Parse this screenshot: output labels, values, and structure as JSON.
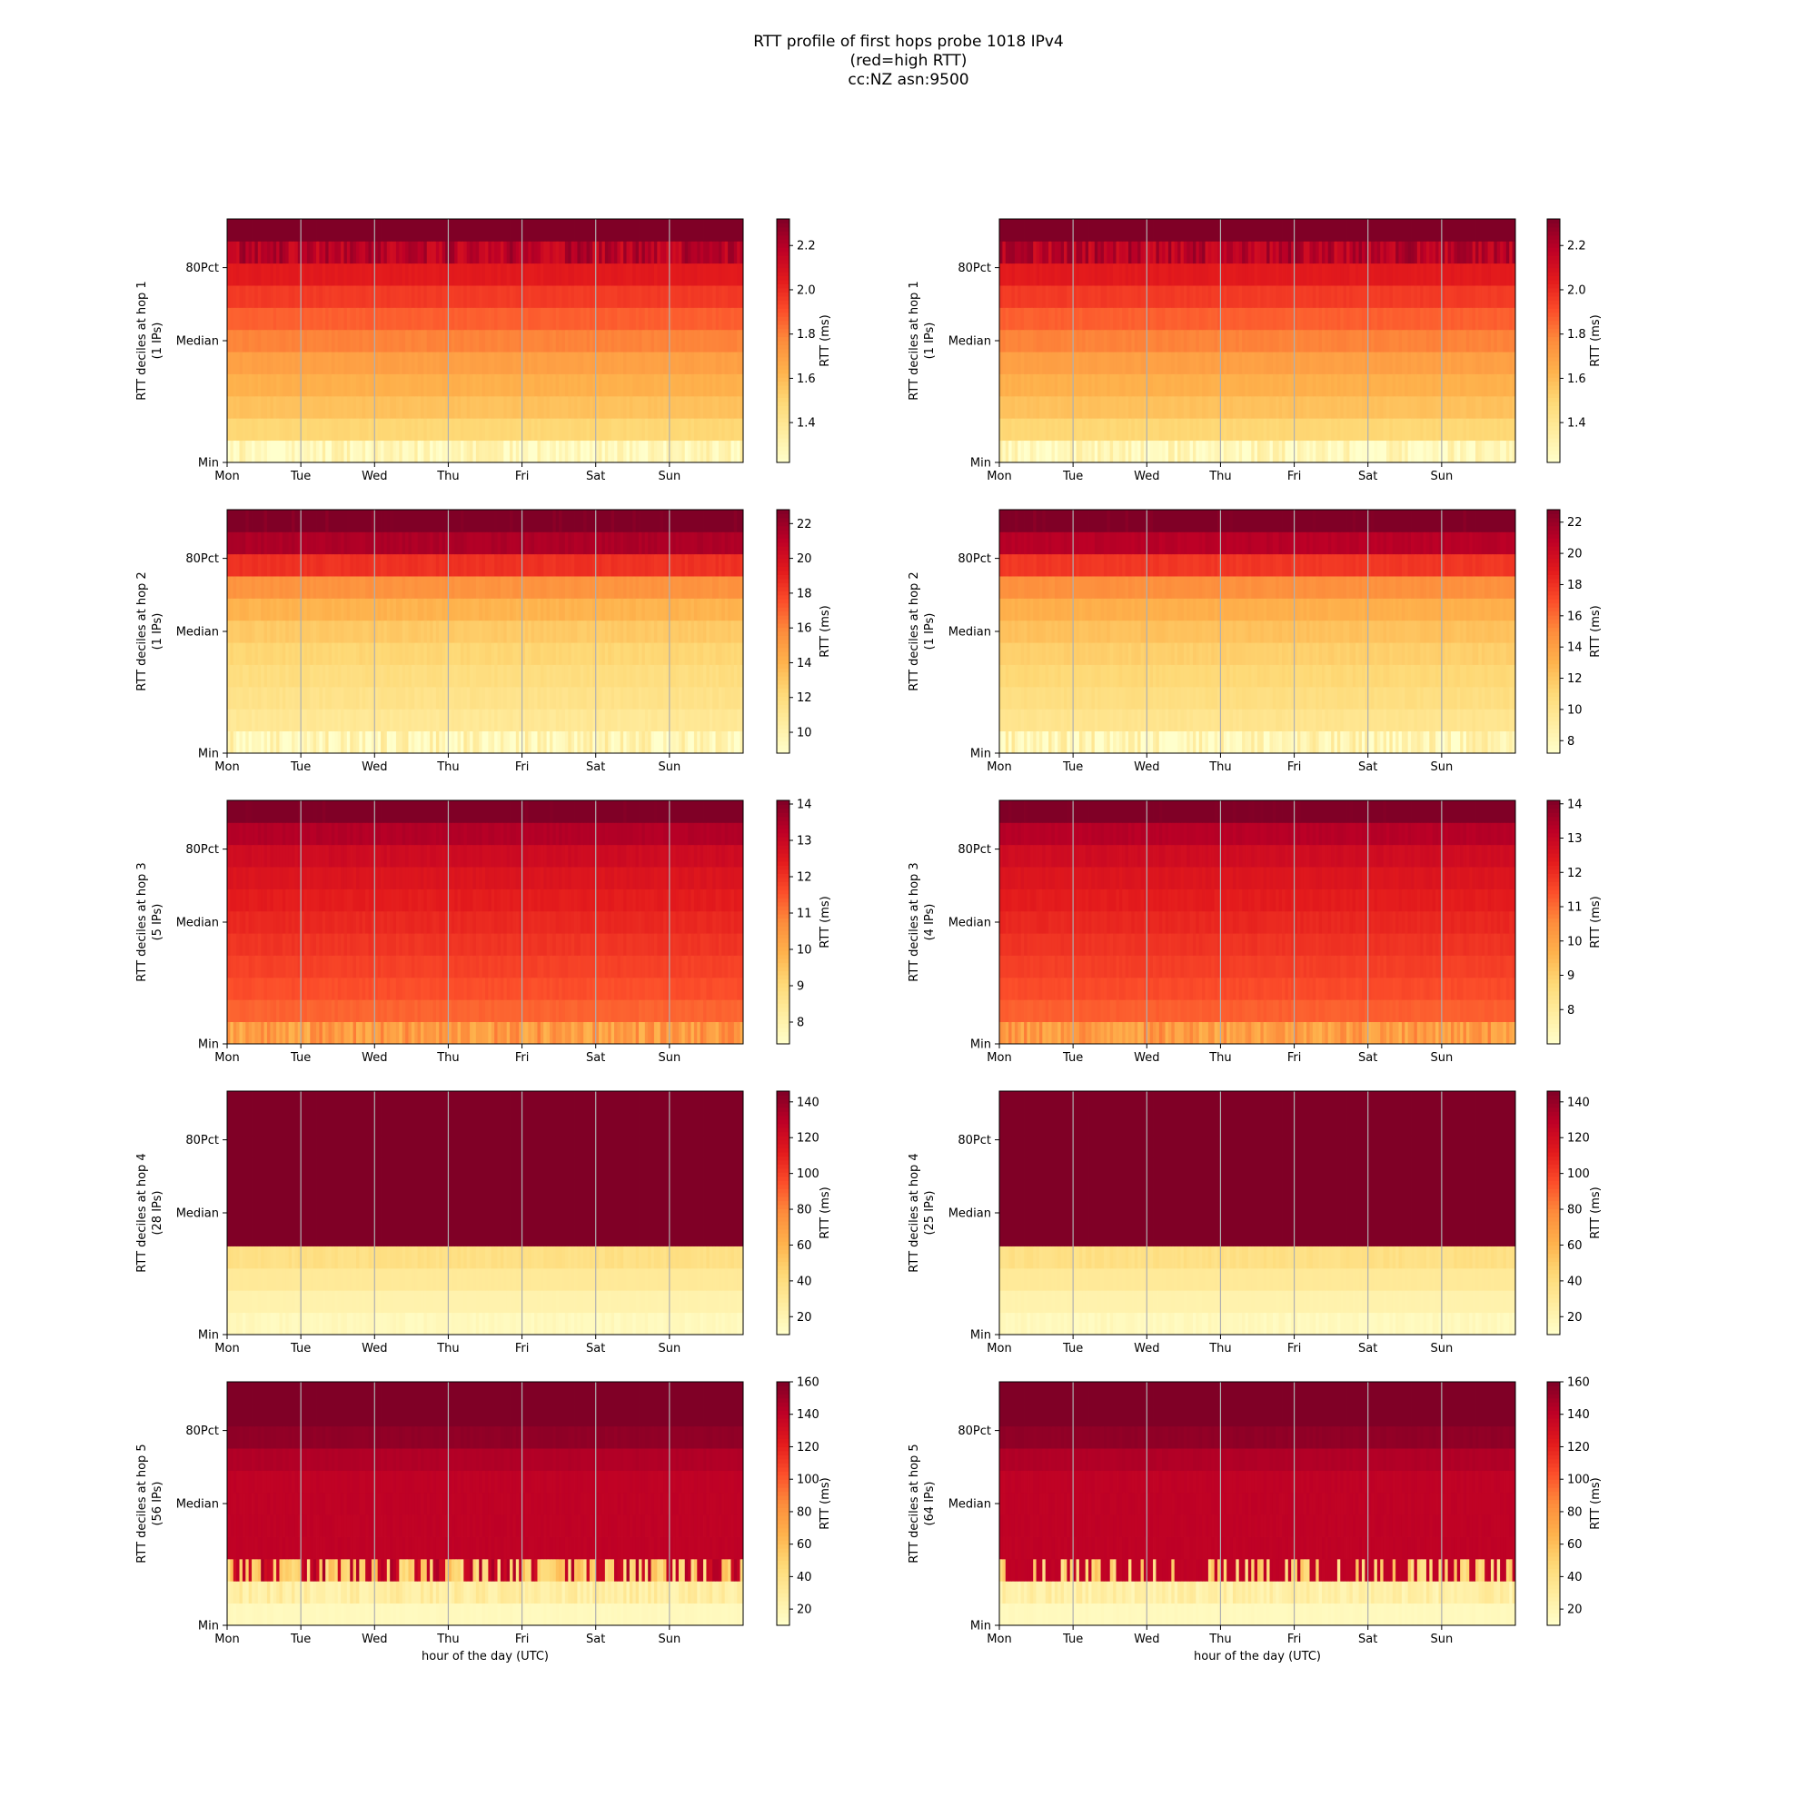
{
  "figure": {
    "title_lines": [
      "RTT profile of first hops probe 1018 IPv4",
      "(red=high RTT)",
      "cc:NZ asn:9500"
    ]
  },
  "chart_data": [
    {
      "type": "heatmap",
      "column": "left",
      "hop": 1,
      "ylabel_lines": [
        "RTT deciles at hop 1",
        "(1 IPs)"
      ],
      "xlabel": "",
      "x_tick_labels": [
        "Mon",
        "Tue",
        "Wed",
        "Thu",
        "Fri",
        "Sat",
        "Sun"
      ],
      "y_tick_labels": [
        {
          "label": "Min",
          "band": 0
        },
        {
          "label": "Median",
          "band": 5
        },
        {
          "label": "80Pct",
          "band": 8
        }
      ],
      "colorbar": {
        "label": "RTT (ms)",
        "range": [
          1.22,
          2.32
        ],
        "ticks": [
          1.4,
          1.6,
          1.8,
          2.0,
          2.2
        ]
      },
      "colormap": "YlOrRd",
      "band_values": [
        1.28,
        1.5,
        1.58,
        1.64,
        1.7,
        1.79,
        1.87,
        1.96,
        2.05,
        2.19,
        2.4
      ],
      "noise": 0.09,
      "noise_bands": [
        0,
        9
      ],
      "dips": [],
      "grid": "vertical lines at day boundaries"
    },
    {
      "type": "heatmap",
      "column": "right",
      "hop": 1,
      "ylabel_lines": [
        "RTT deciles at hop 1",
        "(1 IPs)"
      ],
      "xlabel": "",
      "x_tick_labels": [
        "Mon",
        "Tue",
        "Wed",
        "Thu",
        "Fri",
        "Sat",
        "Sun"
      ],
      "y_tick_labels": [
        {
          "label": "Min",
          "band": 0
        },
        {
          "label": "Median",
          "band": 5
        },
        {
          "label": "80Pct",
          "band": 8
        }
      ],
      "colorbar": {
        "label": "RTT (ms)",
        "range": [
          1.22,
          2.32
        ],
        "ticks": [
          1.4,
          1.6,
          1.8,
          2.0,
          2.2
        ]
      },
      "colormap": "YlOrRd",
      "band_values": [
        1.28,
        1.5,
        1.58,
        1.64,
        1.7,
        1.79,
        1.87,
        1.96,
        2.05,
        2.19,
        2.4
      ],
      "noise": 0.09,
      "noise_bands": [
        0,
        9
      ],
      "dips": [],
      "grid": "vertical lines at day boundaries"
    },
    {
      "type": "heatmap",
      "column": "left",
      "hop": 2,
      "ylabel_lines": [
        "RTT deciles at hop 2",
        "(1 IPs)"
      ],
      "xlabel": "",
      "x_tick_labels": [
        "Mon",
        "Tue",
        "Wed",
        "Thu",
        "Fri",
        "Sat",
        "Sun"
      ],
      "y_tick_labels": [
        {
          "label": "Min",
          "band": 0
        },
        {
          "label": "Median",
          "band": 5
        },
        {
          "label": "80Pct",
          "band": 8
        }
      ],
      "colorbar": {
        "label": "RTT (ms)",
        "range": [
          8.8,
          22.8
        ],
        "ticks": [
          10,
          12,
          14,
          16,
          18,
          20,
          22
        ]
      },
      "colormap": "YlOrRd",
      "band_values": [
        9.6,
        11.0,
        11.5,
        11.9,
        12.4,
        13.0,
        14.0,
        15.5,
        18.5,
        21.5,
        24
      ],
      "noise": 1.6,
      "noise_bands": [
        0,
        10
      ],
      "dips": [],
      "grid": "vertical lines at day boundaries"
    },
    {
      "type": "heatmap",
      "column": "right",
      "hop": 2,
      "ylabel_lines": [
        "RTT deciles at hop 2",
        "(1 IPs)"
      ],
      "xlabel": "",
      "x_tick_labels": [
        "Mon",
        "Tue",
        "Wed",
        "Thu",
        "Fri",
        "Sat",
        "Sun"
      ],
      "y_tick_labels": [
        {
          "label": "Min",
          "band": 0
        },
        {
          "label": "Median",
          "band": 5
        },
        {
          "label": "80Pct",
          "band": 8
        }
      ],
      "colorbar": {
        "label": "RTT (ms)",
        "range": [
          7.2,
          22.8
        ],
        "ticks": [
          8,
          10,
          12,
          14,
          16,
          18,
          20,
          22
        ]
      },
      "colormap": "YlOrRd",
      "band_values": [
        8.2,
        10.0,
        10.6,
        11.1,
        11.6,
        12.3,
        13.2,
        14.8,
        17.8,
        21.0,
        24
      ],
      "noise": 1.6,
      "noise_bands": [
        0,
        10
      ],
      "dips": [],
      "grid": "vertical lines at day boundaries"
    },
    {
      "type": "heatmap",
      "column": "left",
      "hop": 3,
      "ylabel_lines": [
        "RTT deciles at hop 3",
        "(5 IPs)"
      ],
      "xlabel": "",
      "x_tick_labels": [
        "Mon",
        "Tue",
        "Wed",
        "Thu",
        "Fri",
        "Sat",
        "Sun"
      ],
      "y_tick_labels": [
        {
          "label": "Min",
          "band": 0
        },
        {
          "label": "Median",
          "band": 5
        },
        {
          "label": "80Pct",
          "band": 8
        }
      ],
      "colorbar": {
        "label": "RTT (ms)",
        "range": [
          7.4,
          14.1
        ],
        "ticks": [
          8,
          9,
          10,
          11,
          12,
          13,
          14
        ]
      },
      "colormap": "YlOrRd",
      "band_values": [
        10.4,
        11.3,
        11.6,
        11.8,
        12.0,
        12.2,
        12.4,
        12.6,
        12.9,
        13.4,
        14.6
      ],
      "noise": 0.6,
      "noise_bands": [
        0,
        10
      ],
      "dips": [],
      "grid": "vertical lines at day boundaries"
    },
    {
      "type": "heatmap",
      "column": "right",
      "hop": 3,
      "ylabel_lines": [
        "RTT deciles at hop 3",
        "(4 IPs)"
      ],
      "xlabel": "",
      "x_tick_labels": [
        "Mon",
        "Tue",
        "Wed",
        "Thu",
        "Fri",
        "Sat",
        "Sun"
      ],
      "y_tick_labels": [
        {
          "label": "Min",
          "band": 0
        },
        {
          "label": "Median",
          "band": 5
        },
        {
          "label": "80Pct",
          "band": 8
        }
      ],
      "colorbar": {
        "label": "RTT (ms)",
        "range": [
          7.0,
          14.1
        ],
        "ticks": [
          8,
          9,
          10,
          11,
          12,
          13,
          14
        ]
      },
      "colormap": "YlOrRd",
      "band_values": [
        10.2,
        11.2,
        11.5,
        11.7,
        11.9,
        12.1,
        12.3,
        12.5,
        12.8,
        13.3,
        14.6
      ],
      "noise": 0.6,
      "noise_bands": [
        0,
        10
      ],
      "dips": [],
      "grid": "vertical lines at day boundaries"
    },
    {
      "type": "heatmap",
      "column": "left",
      "hop": 4,
      "ylabel_lines": [
        "RTT deciles at hop 4",
        "(28 IPs)"
      ],
      "xlabel": "",
      "x_tick_labels": [
        "Mon",
        "Tue",
        "Wed",
        "Thu",
        "Fri",
        "Sat",
        "Sun"
      ],
      "y_tick_labels": [
        {
          "label": "Min",
          "band": 0
        },
        {
          "label": "Median",
          "band": 5
        },
        {
          "label": "80Pct",
          "band": 8
        }
      ],
      "colorbar": {
        "label": "RTT (ms)",
        "range": [
          10,
          146
        ],
        "ticks": [
          20,
          40,
          60,
          80,
          100,
          120,
          140
        ]
      },
      "colormap": "YlOrRd",
      "band_values": [
        16,
        22,
        30,
        38,
        150,
        150,
        150,
        150,
        150,
        150,
        150
      ],
      "noise": 2.5,
      "noise_bands": [
        0,
        3
      ],
      "dips": [],
      "grid": "vertical lines at day boundaries"
    },
    {
      "type": "heatmap",
      "column": "right",
      "hop": 4,
      "ylabel_lines": [
        "RTT deciles at hop 4",
        "(25 IPs)"
      ],
      "xlabel": "",
      "x_tick_labels": [
        "Mon",
        "Tue",
        "Wed",
        "Thu",
        "Fri",
        "Sat",
        "Sun"
      ],
      "y_tick_labels": [
        {
          "label": "Min",
          "band": 0
        },
        {
          "label": "Median",
          "band": 5
        },
        {
          "label": "80Pct",
          "band": 8
        }
      ],
      "colorbar": {
        "label": "RTT (ms)",
        "range": [
          10,
          146
        ],
        "ticks": [
          20,
          40,
          60,
          80,
          100,
          120,
          140
        ]
      },
      "colormap": "YlOrRd",
      "band_values": [
        16,
        22,
        30,
        38,
        150,
        150,
        150,
        150,
        150,
        150,
        150
      ],
      "noise": 2.5,
      "noise_bands": [
        0,
        3
      ],
      "dips": [],
      "grid": "vertical lines at day boundaries"
    },
    {
      "type": "heatmap",
      "column": "left",
      "hop": 5,
      "ylabel_lines": [
        "RTT deciles at hop 5",
        "(56 IPs)"
      ],
      "xlabel": "hour of the day (UTC)",
      "x_tick_labels": [
        "Mon",
        "Tue",
        "Wed",
        "Thu",
        "Fri",
        "Sat",
        "Sun"
      ],
      "y_tick_labels": [
        {
          "label": "Min",
          "band": 0
        },
        {
          "label": "Median",
          "band": 5
        },
        {
          "label": "80Pct",
          "band": 8
        }
      ],
      "colorbar": {
        "label": "RTT (ms)",
        "range": [
          10,
          160
        ],
        "ticks": [
          20,
          40,
          60,
          80,
          100,
          120,
          140,
          160
        ]
      },
      "colormap": "YlOrRd",
      "band_values": [
        16,
        28,
        140,
        140,
        140,
        140,
        140,
        145,
        155,
        165,
        170
      ],
      "noise": 8,
      "noise_bands": [
        1,
        2
      ],
      "dips": [
        {
          "band": 2,
          "fraction": 0.55
        }
      ],
      "grid": "vertical lines at day boundaries"
    },
    {
      "type": "heatmap",
      "column": "right",
      "hop": 5,
      "ylabel_lines": [
        "RTT deciles at hop 5",
        "(64 IPs)"
      ],
      "xlabel": "hour of the day (UTC)",
      "x_tick_labels": [
        "Mon",
        "Tue",
        "Wed",
        "Thu",
        "Fri",
        "Sat",
        "Sun"
      ],
      "y_tick_labels": [
        {
          "label": "Min",
          "band": 0
        },
        {
          "label": "Median",
          "band": 5
        },
        {
          "label": "80Pct",
          "band": 8
        }
      ],
      "colorbar": {
        "label": "RTT (ms)",
        "range": [
          10,
          160
        ],
        "ticks": [
          20,
          40,
          60,
          80,
          100,
          120,
          140,
          160
        ]
      },
      "colormap": "YlOrRd",
      "band_values": [
        16,
        26,
        140,
        140,
        140,
        140,
        140,
        145,
        155,
        165,
        170
      ],
      "noise": 8,
      "noise_bands": [
        1
      ],
      "dips": [
        {
          "band": 2,
          "fraction": 0.35
        }
      ],
      "grid": "vertical lines at day boundaries"
    }
  ]
}
